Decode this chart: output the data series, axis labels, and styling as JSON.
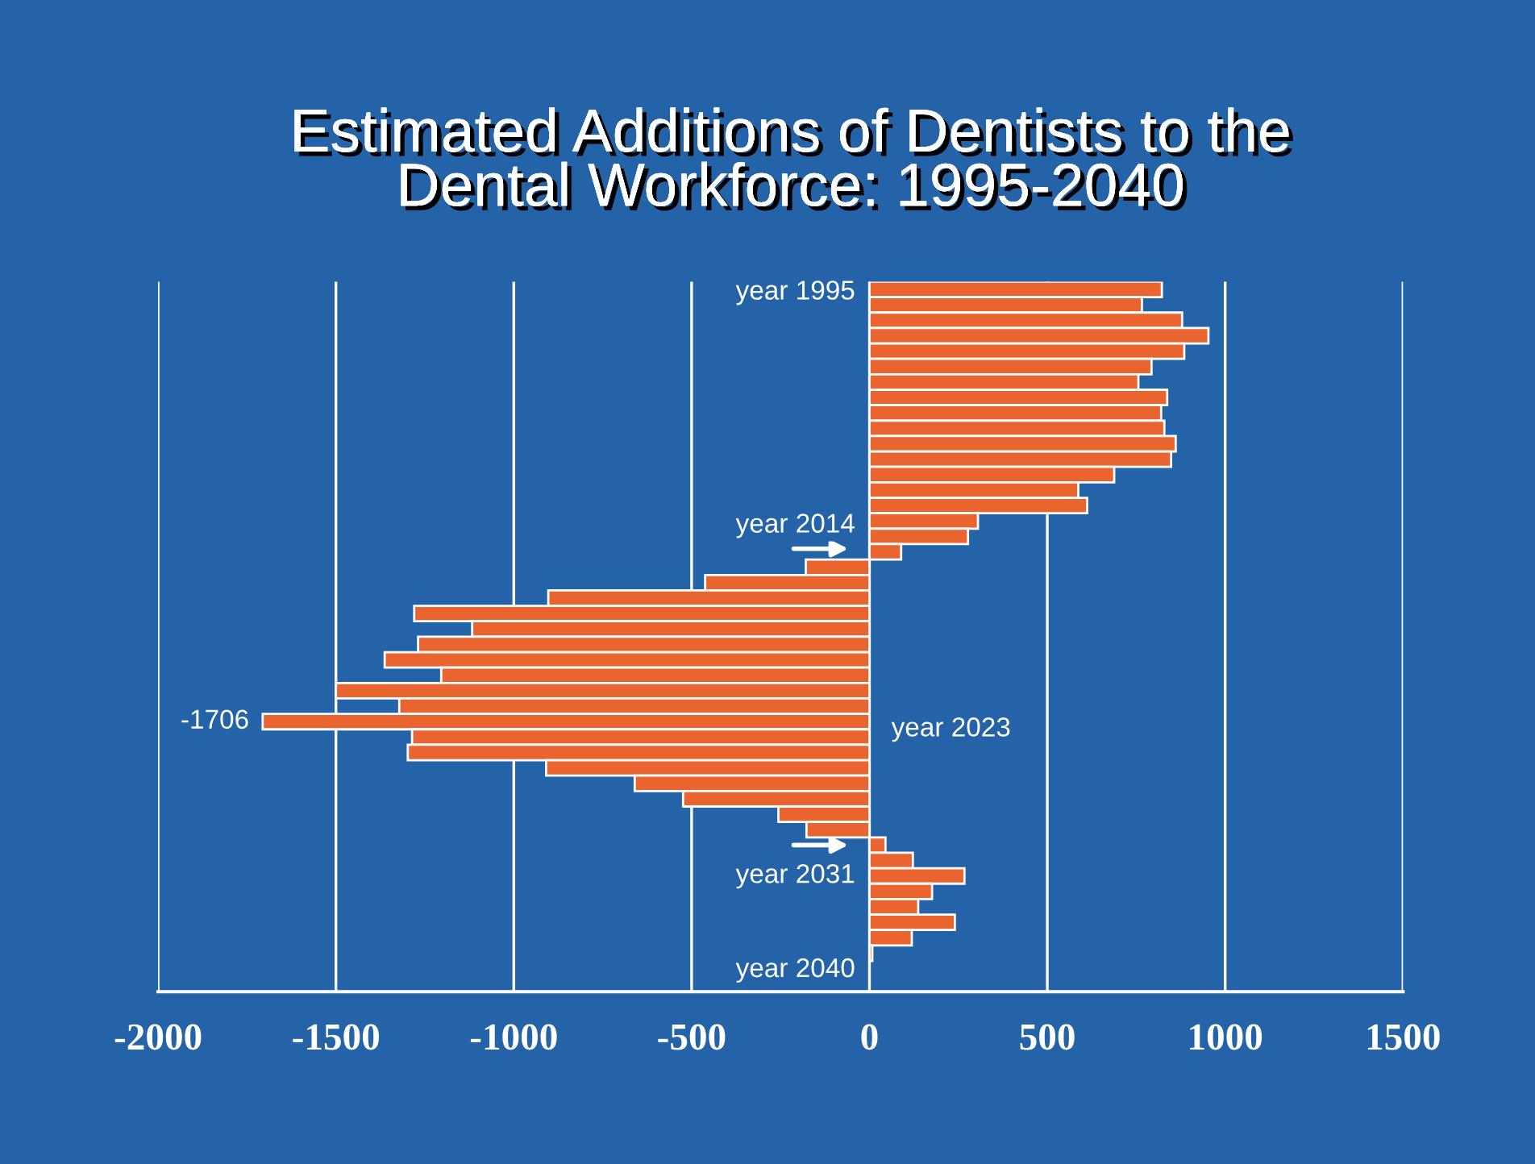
{
  "chart_data": {
    "type": "bar",
    "orientation": "horizontal",
    "title": "Estimated Additions of Dentists to the\nDental Workforce: 1995-2040",
    "categories": [
      null,
      null,
      null,
      null,
      null,
      null,
      null,
      null,
      null,
      null,
      null,
      null,
      null,
      null,
      null,
      null,
      null,
      null,
      null,
      null,
      null,
      null,
      null,
      null,
      null,
      null,
      null,
      null,
      null,
      null,
      null,
      null,
      null,
      null,
      null,
      null,
      null,
      null,
      null,
      null,
      null,
      null,
      null,
      null,
      null,
      null
    ],
    "values": [
      822,
      766,
      879,
      953,
      885,
      793,
      756,
      837,
      820,
      829,
      861,
      848,
      688,
      587,
      612,
      305,
      277,
      89,
      -179,
      -462,
      -903,
      -1280,
      -1117,
      -1269,
      -1363,
      -1204,
      -1500,
      -1322,
      -1706,
      -1286,
      -1298,
      -909,
      -660,
      -524,
      -256,
      -177,
      45,
      122,
      267,
      176,
      137,
      240,
      119,
      8,
      null,
      null
    ],
    "value_labels": [
      null,
      null,
      null,
      null,
      null,
      null,
      null,
      null,
      null,
      null,
      null,
      null,
      null,
      null,
      null,
      null,
      null,
      null,
      null,
      null,
      null,
      null,
      null,
      null,
      null,
      null,
      null,
      null,
      "-1706",
      null,
      null,
      null,
      null,
      null,
      null,
      null,
      null,
      null,
      null,
      null,
      null,
      null,
      null,
      null,
      null,
      null
    ],
    "color": "#ea6430",
    "xlim": [
      -2000,
      1500
    ],
    "xticks": [
      -2000,
      -1500,
      -1000,
      -500,
      0,
      500,
      1000,
      1500
    ],
    "grid": "x",
    "annotations": [
      "year 1995",
      "year 2014",
      "year 2023",
      "year 2031",
      "year 2040"
    ]
  }
}
